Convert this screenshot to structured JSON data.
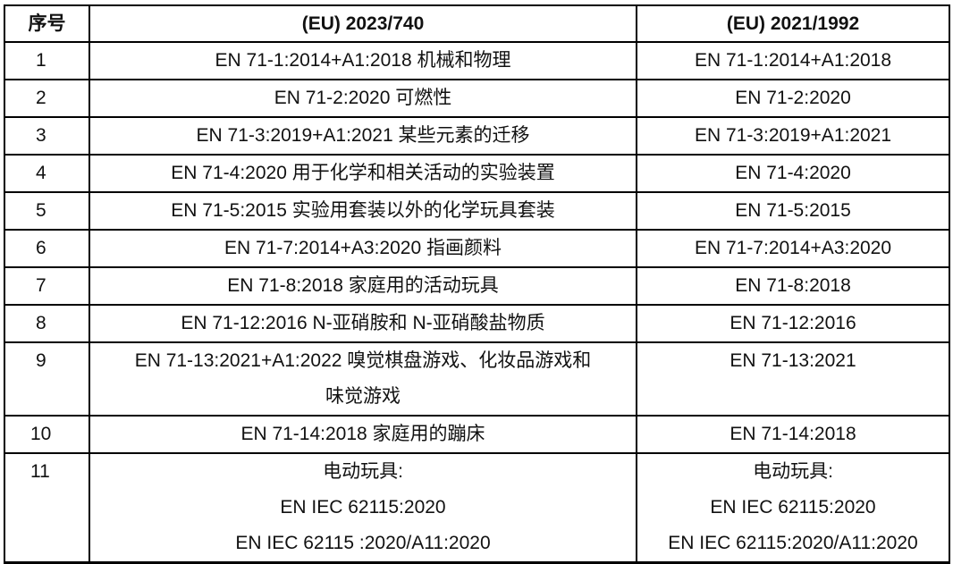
{
  "header": {
    "col1": "序号",
    "col2": "(EU) 2023/740",
    "col3": "(EU) 2021/1992"
  },
  "rows": [
    {
      "no": "1",
      "eu2023": [
        "EN 71-1:2014+A1:2018  机械和物理"
      ],
      "eu2021": [
        "EN 71-1:2014+A1:2018"
      ]
    },
    {
      "no": "2",
      "eu2023": [
        "EN 71-2:2020  可燃性"
      ],
      "eu2021": [
        "EN 71-2:2020"
      ]
    },
    {
      "no": "3",
      "eu2023": [
        "EN 71-3:2019+A1:2021 某些元素的迁移"
      ],
      "eu2021": [
        "EN 71-3:2019+A1:2021"
      ]
    },
    {
      "no": "4",
      "eu2023": [
        "EN 71-4:2020 用于化学和相关活动的实验装置"
      ],
      "eu2021": [
        "EN 71-4:2020"
      ]
    },
    {
      "no": "5",
      "eu2023": [
        "EN 71-5:2015  实验用套装以外的化学玩具套装"
      ],
      "eu2021": [
        "EN 71-5:2015"
      ]
    },
    {
      "no": "6",
      "eu2023": [
        "EN 71-7:2014+A3:2020  指画颜料"
      ],
      "eu2021": [
        "EN 71-7:2014+A3:2020"
      ]
    },
    {
      "no": "7",
      "eu2023": [
        "EN 71-8:2018  家庭用的活动玩具"
      ],
      "eu2021": [
        "EN 71-8:2018"
      ]
    },
    {
      "no": "8",
      "eu2023": [
        "EN 71-12:2016 N-亚硝胺和 N-亚硝酸盐物质"
      ],
      "eu2021": [
        "EN 71-12:2016"
      ]
    },
    {
      "no": "9",
      "eu2023": [
        "EN 71-13:2021+A1:2022 嗅觉棋盘游戏、化妆品游戏和",
        "味觉游戏"
      ],
      "eu2021": [
        "EN 71-13:2021"
      ]
    },
    {
      "no": "10",
      "eu2023": [
        "EN 71-14:2018  家庭用的蹦床"
      ],
      "eu2021": [
        "EN 71-14:2018"
      ]
    },
    {
      "no": "11",
      "eu2023": [
        "电动玩具:",
        "EN IEC 62115:2020",
        "EN IEC 62115 :2020/A11:2020"
      ],
      "eu2021": [
        "电动玩具:",
        "EN IEC 62115:2020",
        "EN IEC 62115:2020/A11:2020"
      ]
    }
  ]
}
